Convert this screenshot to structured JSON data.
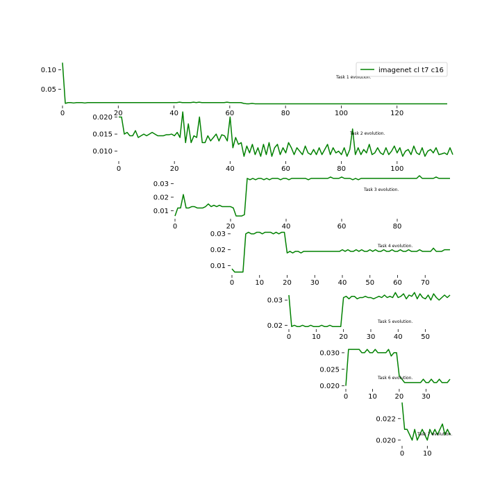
{
  "chart_data": [
    {
      "type": "line",
      "title": "Task 1 evolution.",
      "xlim": [
        0,
        139
      ],
      "ylim": [
        0.012,
        0.122
      ],
      "xticks": [
        0,
        20,
        40,
        60,
        80,
        100,
        120
      ],
      "yticks": [
        0.05,
        0.1
      ],
      "ytick_labels": [
        "0.05",
        "0.10"
      ],
      "legend": {
        "label": "imagenet cl t7 c16",
        "color": "#008000",
        "position": "upper-right"
      },
      "series": [
        {
          "name": "imagenet cl t7 c16",
          "color": "#008000",
          "y": [
            0.118,
            0.014,
            0.016,
            0.016,
            0.015,
            0.016,
            0.016,
            0.016,
            0.015,
            0.016,
            0.016,
            0.016,
            0.016,
            0.016,
            0.016,
            0.016,
            0.016,
            0.016,
            0.016,
            0.016,
            0.016,
            0.016,
            0.016,
            0.016,
            0.016,
            0.016,
            0.016,
            0.016,
            0.016,
            0.016,
            0.016,
            0.016,
            0.016,
            0.016,
            0.016,
            0.016,
            0.016,
            0.016,
            0.016,
            0.016,
            0.016,
            0.016,
            0.017,
            0.016,
            0.016,
            0.016,
            0.016,
            0.017,
            0.016,
            0.017,
            0.016,
            0.016,
            0.016,
            0.016,
            0.016,
            0.016,
            0.016,
            0.016,
            0.016,
            0.017,
            0.016,
            0.016,
            0.016,
            0.016,
            0.016,
            0.014,
            0.013,
            0.013,
            0.014,
            0.013,
            0.013,
            0.013,
            0.013,
            0.013,
            0.013,
            0.013,
            0.013,
            0.013,
            0.013,
            0.013,
            0.013,
            0.013,
            0.013,
            0.013,
            0.013,
            0.013,
            0.013,
            0.013,
            0.013,
            0.013,
            0.013,
            0.013,
            0.013,
            0.013,
            0.013,
            0.013,
            0.013,
            0.013,
            0.013,
            0.013,
            0.013,
            0.013,
            0.013,
            0.013,
            0.013,
            0.013,
            0.013,
            0.013,
            0.013,
            0.013,
            0.013,
            0.013,
            0.013,
            0.013,
            0.013,
            0.013,
            0.013,
            0.013,
            0.013,
            0.013,
            0.013,
            0.013,
            0.013,
            0.013,
            0.013,
            0.013,
            0.013,
            0.013,
            0.013,
            0.013,
            0.013,
            0.013,
            0.013,
            0.013,
            0.013,
            0.013,
            0.013,
            0.013,
            0.013
          ]
        }
      ]
    },
    {
      "type": "line",
      "title": "Task 2 evolution.",
      "xlim": [
        0,
        119
      ],
      "ylim": [
        0.0075,
        0.0205
      ],
      "xticks": [
        0,
        20,
        40,
        60,
        80,
        100
      ],
      "yticks": [
        0.01,
        0.015,
        0.02
      ],
      "ytick_labels": [
        "0.010",
        "0.015",
        "0.020"
      ],
      "series": [
        {
          "name": "imagenet cl t7 c16",
          "color": "#008000",
          "y": [
            0.02,
            0.02,
            0.015,
            0.0155,
            0.0145,
            0.0145,
            0.016,
            0.014,
            0.0145,
            0.015,
            0.0145,
            0.015,
            0.0155,
            0.015,
            0.0145,
            0.0145,
            0.0145,
            0.0148,
            0.0148,
            0.015,
            0.0145,
            0.0155,
            0.014,
            0.0215,
            0.0125,
            0.018,
            0.0125,
            0.0145,
            0.014,
            0.02,
            0.0125,
            0.0125,
            0.0145,
            0.013,
            0.014,
            0.015,
            0.013,
            0.0148,
            0.0145,
            0.013,
            0.02,
            0.011,
            0.014,
            0.012,
            0.0125,
            0.0085,
            0.0115,
            0.0095,
            0.012,
            0.009,
            0.011,
            0.0085,
            0.012,
            0.009,
            0.0125,
            0.0085,
            0.011,
            0.012,
            0.009,
            0.011,
            0.0095,
            0.0125,
            0.011,
            0.009,
            0.011,
            0.01,
            0.009,
            0.0115,
            0.0095,
            0.009,
            0.0105,
            0.009,
            0.011,
            0.009,
            0.0105,
            0.012,
            0.009,
            0.011,
            0.0095,
            0.01,
            0.009,
            0.011,
            0.0085,
            0.0105,
            0.0165,
            0.009,
            0.011,
            0.009,
            0.0105,
            0.0095,
            0.012,
            0.009,
            0.0095,
            0.011,
            0.0095,
            0.009,
            0.011,
            0.009,
            0.01,
            0.0115,
            0.0095,
            0.011,
            0.0085,
            0.01,
            0.0105,
            0.009,
            0.0115,
            0.0095,
            0.009,
            0.011,
            0.0085,
            0.01,
            0.0105,
            0.0095,
            0.011,
            0.009,
            0.0092,
            0.0095,
            0.009,
            0.011,
            0.009
          ]
        }
      ]
    },
    {
      "type": "line",
      "title": "Task 3 evolution.",
      "xlim": [
        0,
        99
      ],
      "ylim": [
        0.005,
        0.036
      ],
      "xticks": [
        0,
        20,
        40,
        60,
        80
      ],
      "yticks": [
        0.01,
        0.02,
        0.03
      ],
      "ytick_labels": [
        "0.01",
        "0.02",
        "0.03"
      ],
      "series": [
        {
          "name": "imagenet cl t7 c16",
          "color": "#008000",
          "y": [
            0.006,
            0.012,
            0.012,
            0.022,
            0.012,
            0.012,
            0.013,
            0.013,
            0.012,
            0.012,
            0.012,
            0.013,
            0.015,
            0.013,
            0.014,
            0.013,
            0.014,
            0.013,
            0.013,
            0.013,
            0.013,
            0.012,
            0.006,
            0.006,
            0.006,
            0.007,
            0.034,
            0.033,
            0.034,
            0.033,
            0.034,
            0.034,
            0.033,
            0.034,
            0.033,
            0.034,
            0.034,
            0.034,
            0.033,
            0.034,
            0.034,
            0.033,
            0.034,
            0.034,
            0.034,
            0.034,
            0.034,
            0.034,
            0.033,
            0.034,
            0.034,
            0.034,
            0.034,
            0.034,
            0.034,
            0.034,
            0.035,
            0.034,
            0.034,
            0.034,
            0.035,
            0.034,
            0.034,
            0.034,
            0.033,
            0.034,
            0.033,
            0.034,
            0.034,
            0.034,
            0.034,
            0.034,
            0.034,
            0.034,
            0.034,
            0.034,
            0.034,
            0.034,
            0.034,
            0.034,
            0.034,
            0.034,
            0.034,
            0.034,
            0.034,
            0.034,
            0.034,
            0.034,
            0.036,
            0.034,
            0.034,
            0.034,
            0.034,
            0.034,
            0.035,
            0.034,
            0.034,
            0.034,
            0.034,
            0.034
          ]
        }
      ]
    },
    {
      "type": "line",
      "title": "Task 4 evolution.",
      "xlim": [
        0,
        79
      ],
      "ylim": [
        0.005,
        0.036
      ],
      "xticks": [
        0,
        10,
        20,
        30,
        40,
        50,
        60,
        70
      ],
      "yticks": [
        0.01,
        0.02,
        0.03
      ],
      "ytick_labels": [
        "0.01",
        "0.02",
        "0.03"
      ],
      "series": [
        {
          "name": "imagenet cl t7 c16",
          "color": "#008000",
          "y": [
            0.008,
            0.006,
            0.006,
            0.006,
            0.006,
            0.03,
            0.031,
            0.03,
            0.03,
            0.031,
            0.031,
            0.03,
            0.031,
            0.031,
            0.031,
            0.03,
            0.031,
            0.03,
            0.031,
            0.031,
            0.018,
            0.019,
            0.018,
            0.019,
            0.019,
            0.018,
            0.019,
            0.019,
            0.019,
            0.019,
            0.019,
            0.019,
            0.019,
            0.019,
            0.019,
            0.019,
            0.019,
            0.019,
            0.019,
            0.019,
            0.02,
            0.019,
            0.02,
            0.019,
            0.019,
            0.02,
            0.019,
            0.02,
            0.019,
            0.019,
            0.02,
            0.019,
            0.02,
            0.019,
            0.019,
            0.02,
            0.019,
            0.019,
            0.02,
            0.019,
            0.019,
            0.02,
            0.019,
            0.019,
            0.02,
            0.019,
            0.019,
            0.019,
            0.02,
            0.019,
            0.019,
            0.019,
            0.019,
            0.021,
            0.019,
            0.019,
            0.019,
            0.02,
            0.02,
            0.02
          ]
        }
      ]
    },
    {
      "type": "line",
      "title": "Task 5 evolution.",
      "xlim": [
        0,
        59
      ],
      "ylim": [
        0.019,
        0.035
      ],
      "xticks": [
        0,
        10,
        20,
        30,
        40,
        50
      ],
      "yticks": [
        0.02,
        0.03
      ],
      "ytick_labels": [
        "0.02",
        "0.03"
      ],
      "series": [
        {
          "name": "imagenet cl t7 c16",
          "color": "#008000",
          "y": [
            0.032,
            0.0195,
            0.02,
            0.0195,
            0.0195,
            0.02,
            0.0195,
            0.0195,
            0.02,
            0.0195,
            0.0195,
            0.0195,
            0.02,
            0.0195,
            0.0195,
            0.02,
            0.0195,
            0.0195,
            0.0195,
            0.0195,
            0.031,
            0.0315,
            0.0305,
            0.0315,
            0.0315,
            0.0305,
            0.031,
            0.031,
            0.0315,
            0.031,
            0.031,
            0.0305,
            0.031,
            0.0315,
            0.031,
            0.032,
            0.031,
            0.0315,
            0.031,
            0.033,
            0.031,
            0.0315,
            0.0325,
            0.0305,
            0.032,
            0.0315,
            0.033,
            0.0305,
            0.0325,
            0.031,
            0.0305,
            0.032,
            0.03,
            0.0325,
            0.031,
            0.03,
            0.031,
            0.032,
            0.031,
            0.032
          ]
        }
      ]
    },
    {
      "type": "line",
      "title": "Task 6 evolution.",
      "xlim": [
        0,
        39
      ],
      "ylim": [
        0.0195,
        0.0325
      ],
      "xticks": [
        0,
        10,
        20,
        30
      ],
      "yticks": [
        0.02,
        0.025,
        0.03
      ],
      "ytick_labels": [
        "0.020",
        "0.025",
        "0.030"
      ],
      "series": [
        {
          "name": "imagenet cl t7 c16",
          "color": "#008000",
          "y": [
            0.02,
            0.031,
            0.031,
            0.031,
            0.031,
            0.031,
            0.03,
            0.03,
            0.031,
            0.03,
            0.03,
            0.031,
            0.03,
            0.03,
            0.03,
            0.03,
            0.031,
            0.029,
            0.03,
            0.03,
            0.023,
            0.022,
            0.021,
            0.021,
            0.021,
            0.021,
            0.021,
            0.021,
            0.021,
            0.022,
            0.021,
            0.021,
            0.022,
            0.021,
            0.021,
            0.022,
            0.021,
            0.021,
            0.021,
            0.022
          ]
        }
      ]
    },
    {
      "type": "line",
      "title": "Task 7 evolution.",
      "xlim": [
        0,
        19
      ],
      "ylim": [
        0.0196,
        0.0236
      ],
      "xticks": [
        0,
        10
      ],
      "yticks": [
        0.02,
        0.022
      ],
      "ytick_labels": [
        "0.020",
        "0.022"
      ],
      "series": [
        {
          "name": "imagenet cl t7 c16",
          "color": "#008000",
          "y": [
            0.0235,
            0.021,
            0.021,
            0.0205,
            0.02,
            0.021,
            0.02,
            0.0205,
            0.021,
            0.0205,
            0.02,
            0.021,
            0.0205,
            0.021,
            0.0205,
            0.021,
            0.0215,
            0.0205,
            0.021,
            0.0205
          ]
        }
      ]
    }
  ]
}
